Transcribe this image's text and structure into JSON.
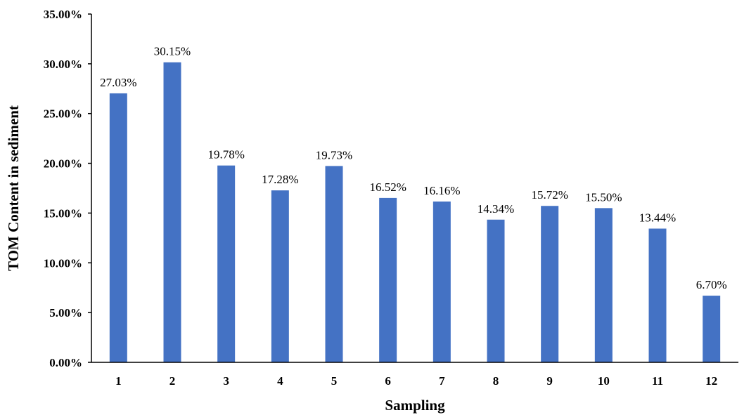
{
  "chart_data": {
    "type": "bar",
    "title": "",
    "xlabel": "Sampling",
    "ylabel": "TOM Content in sediment",
    "categories": [
      "1",
      "2",
      "3",
      "4",
      "5",
      "6",
      "7",
      "8",
      "9",
      "10",
      "11",
      "12"
    ],
    "values": [
      27.03,
      30.15,
      19.78,
      17.28,
      19.73,
      16.52,
      16.16,
      14.34,
      15.72,
      15.5,
      13.44,
      6.7
    ],
    "data_labels": [
      "27.03%",
      "30.15%",
      "19.78%",
      "17.28%",
      "19.73%",
      "16.52%",
      "16.16%",
      "14.34%",
      "15.72%",
      "15.50%",
      "13.44%",
      "6.70%"
    ],
    "y_ticks": [
      0,
      5,
      10,
      15,
      20,
      25,
      30,
      35
    ],
    "y_tick_labels": [
      "0.00%",
      "5.00%",
      "10.00%",
      "15.00%",
      "20.00%",
      "25.00%",
      "30.00%",
      "35.00%"
    ],
    "ylim": [
      0,
      35
    ],
    "grid": false,
    "legend": "none",
    "bar_color": "#4472C4",
    "axis_color": "#000000"
  }
}
